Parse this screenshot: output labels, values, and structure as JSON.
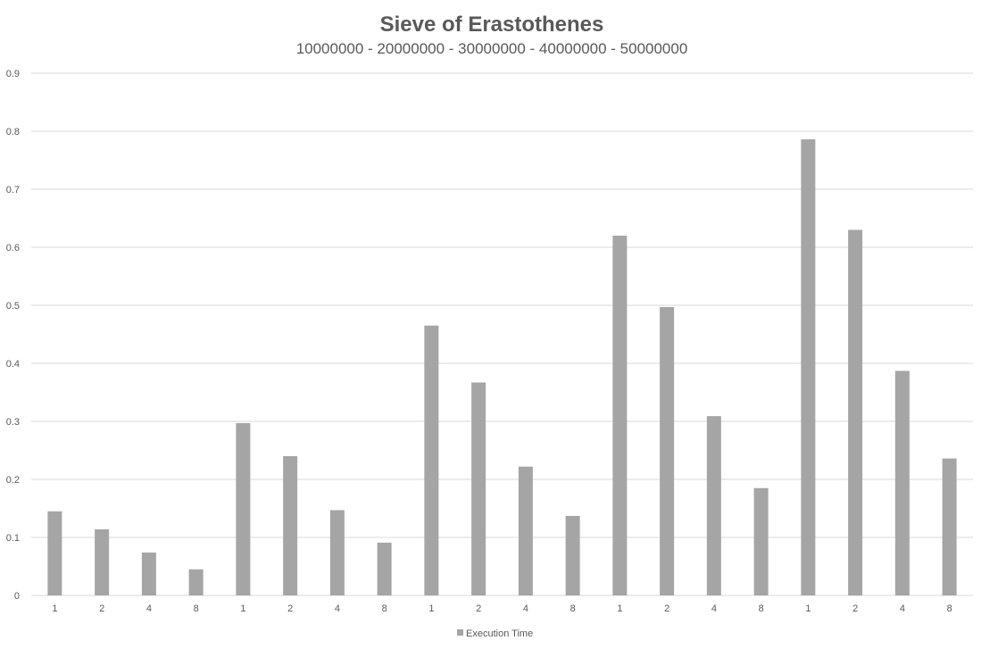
{
  "chart_data": {
    "type": "bar",
    "title": "Sieve of Erastothenes",
    "subtitle": "10000000 - 20000000 - 30000000 - 40000000 - 50000000",
    "xlabel": "",
    "ylabel": "",
    "categories": [
      "1",
      "2",
      "4",
      "8",
      "1",
      "2",
      "4",
      "8",
      "1",
      "2",
      "4",
      "8",
      "1",
      "2",
      "4",
      "8",
      "1",
      "2",
      "4",
      "8"
    ],
    "series": [
      {
        "name": "Execution Time",
        "values": [
          0.145,
          0.114,
          0.074,
          0.045,
          0.297,
          0.24,
          0.147,
          0.091,
          0.465,
          0.367,
          0.222,
          0.137,
          0.62,
          0.497,
          0.309,
          0.185,
          0.786,
          0.63,
          0.387,
          0.236
        ],
        "color": "#a5a5a5"
      }
    ],
    "ylim": [
      0,
      0.9
    ],
    "yticks": [
      "0",
      "0.1",
      "0.2",
      "0.3",
      "0.4",
      "0.5",
      "0.6",
      "0.7",
      "0.8",
      "0.9"
    ],
    "grid": true,
    "legend": "bottom-center",
    "colors": {
      "bar": "#a5a5a5",
      "grid": "#d9d9d9",
      "text": "#595959"
    }
  }
}
